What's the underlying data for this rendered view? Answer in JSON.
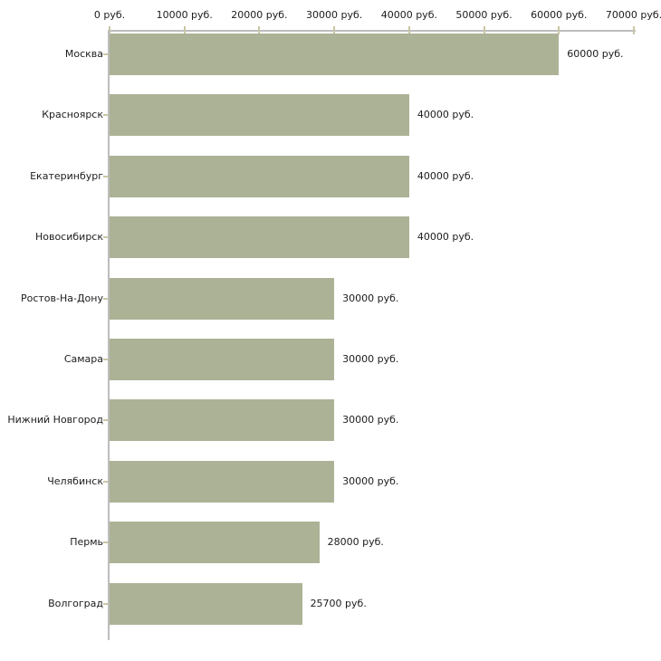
{
  "chart_data": {
    "type": "bar",
    "orientation": "horizontal",
    "title": "",
    "categories": [
      "Москва",
      "Красноярск",
      "Екатеринбург",
      "Новосибирск",
      "Ростов-На-Дону",
      "Самара",
      "Нижний Новгород",
      "Челябинск",
      "Пермь",
      "Волгоград"
    ],
    "values": [
      60000,
      40000,
      40000,
      40000,
      30000,
      30000,
      30000,
      30000,
      28000,
      25700
    ],
    "value_labels": [
      "60000 руб.",
      "40000 руб.",
      "40000 руб.",
      "40000 руб.",
      "30000 руб.",
      "30000 руб.",
      "30000 руб.",
      "30000 руб.",
      "28000 руб.",
      "25700 руб."
    ],
    "x_axis": {
      "position": "top",
      "ticks": [
        0,
        10000,
        20000,
        30000,
        40000,
        50000,
        60000,
        70000
      ],
      "tick_labels": [
        "0 руб.",
        "10000 руб.",
        "20000 руб.",
        "30000 руб.",
        "40000 руб.",
        "50000 руб.",
        "60000 руб.",
        "70000 руб."
      ]
    },
    "xlim": [
      0,
      70000
    ],
    "grid": false,
    "legend": false,
    "colors": {
      "bar": "#acb296",
      "axis_line": "#bdbdbd",
      "tick_mark": "#c9c6a5",
      "text": "#1c1c1c",
      "background": "#ffffff"
    }
  }
}
